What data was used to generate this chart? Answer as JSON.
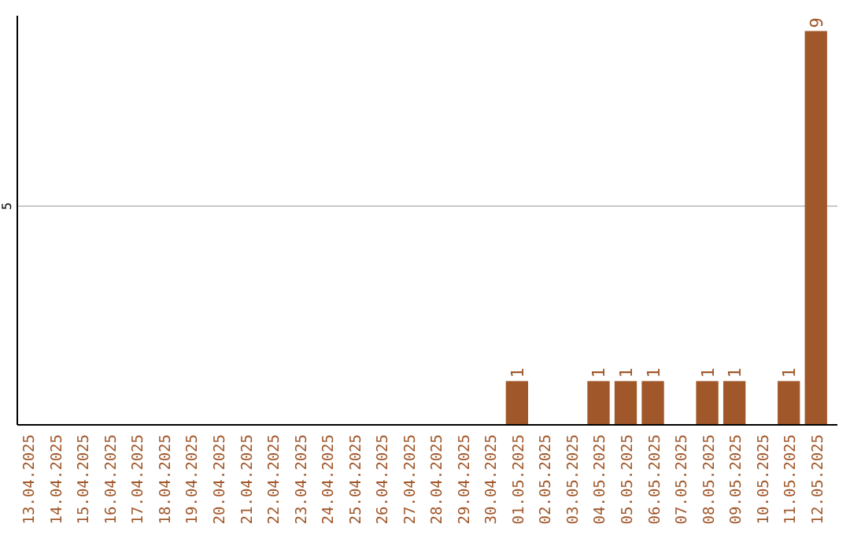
{
  "chart_data": {
    "type": "bar",
    "categories": [
      "13.04.2025",
      "14.04.2025",
      "15.04.2025",
      "16.04.2025",
      "17.04.2025",
      "18.04.2025",
      "19.04.2025",
      "20.04.2025",
      "21.04.2025",
      "22.04.2025",
      "23.04.2025",
      "24.04.2025",
      "25.04.2025",
      "26.04.2025",
      "27.04.2025",
      "28.04.2025",
      "29.04.2025",
      "30.04.2025",
      "01.05.2025",
      "02.05.2025",
      "03.05.2025",
      "04.05.2025",
      "05.05.2025",
      "06.05.2025",
      "07.05.2025",
      "08.05.2025",
      "09.05.2025",
      "10.05.2025",
      "11.05.2025",
      "12.05.2025"
    ],
    "values": [
      null,
      null,
      null,
      null,
      null,
      null,
      null,
      null,
      null,
      null,
      null,
      null,
      null,
      null,
      null,
      null,
      null,
      null,
      1,
      null,
      null,
      1,
      1,
      1,
      null,
      1,
      1,
      null,
      1,
      9
    ],
    "data_labels": true,
    "color": "#a0572a",
    "ylim": [
      0,
      9.35
    ],
    "ref_lines": [
      {
        "axis": "y",
        "value": 5,
        "label": "5",
        "color": "#c8c8c8"
      }
    ]
  }
}
